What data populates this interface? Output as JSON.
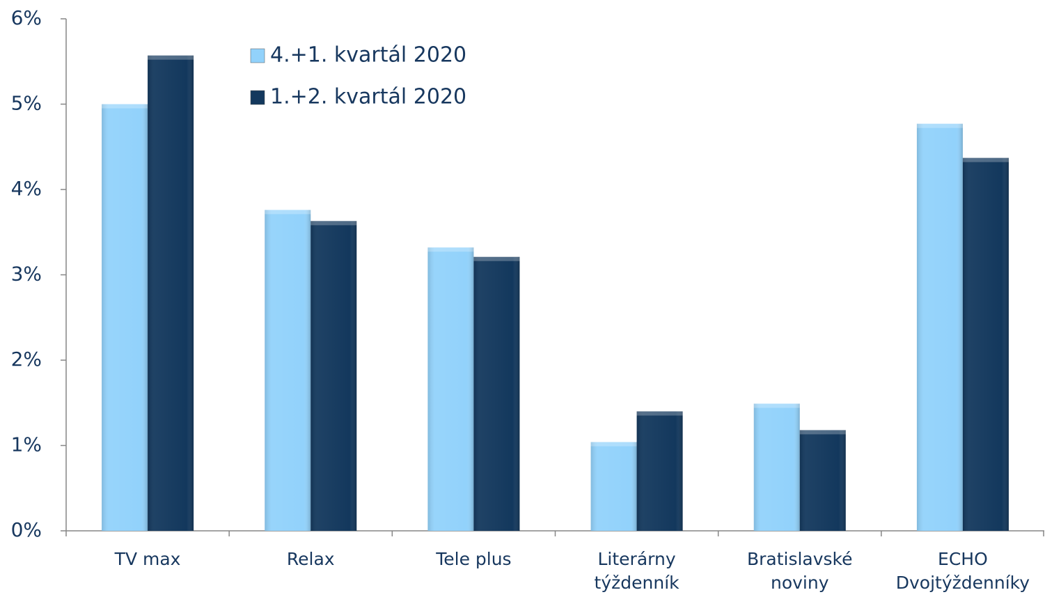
{
  "chart_data": {
    "type": "bar",
    "categories": [
      "TV max",
      "Relax",
      "Tele plus",
      "Literárny\ntýždenník",
      "Bratislavské\nnoviny",
      "ECHO\nDvojtýždenníky"
    ],
    "series": [
      {
        "name": "4.+1. kvartál 2020",
        "color": "#92d2fb",
        "values": [
          5.0,
          3.76,
          3.32,
          1.04,
          1.49,
          4.77
        ]
      },
      {
        "name": "1.+2. kvartál 2020",
        "color": "#13385d",
        "values": [
          5.57,
          3.63,
          3.21,
          1.4,
          1.18,
          4.37
        ]
      }
    ],
    "ylim": [
      0,
      6
    ],
    "yticks": [
      {
        "value": 0,
        "label": "0%"
      },
      {
        "value": 1,
        "label": "1%"
      },
      {
        "value": 2,
        "label": "2%"
      },
      {
        "value": 3,
        "label": "3%"
      },
      {
        "value": 4,
        "label": "4%"
      },
      {
        "value": 5,
        "label": "5%"
      },
      {
        "value": 6,
        "label": "6%"
      }
    ],
    "grid": false,
    "legend": "top-left"
  }
}
